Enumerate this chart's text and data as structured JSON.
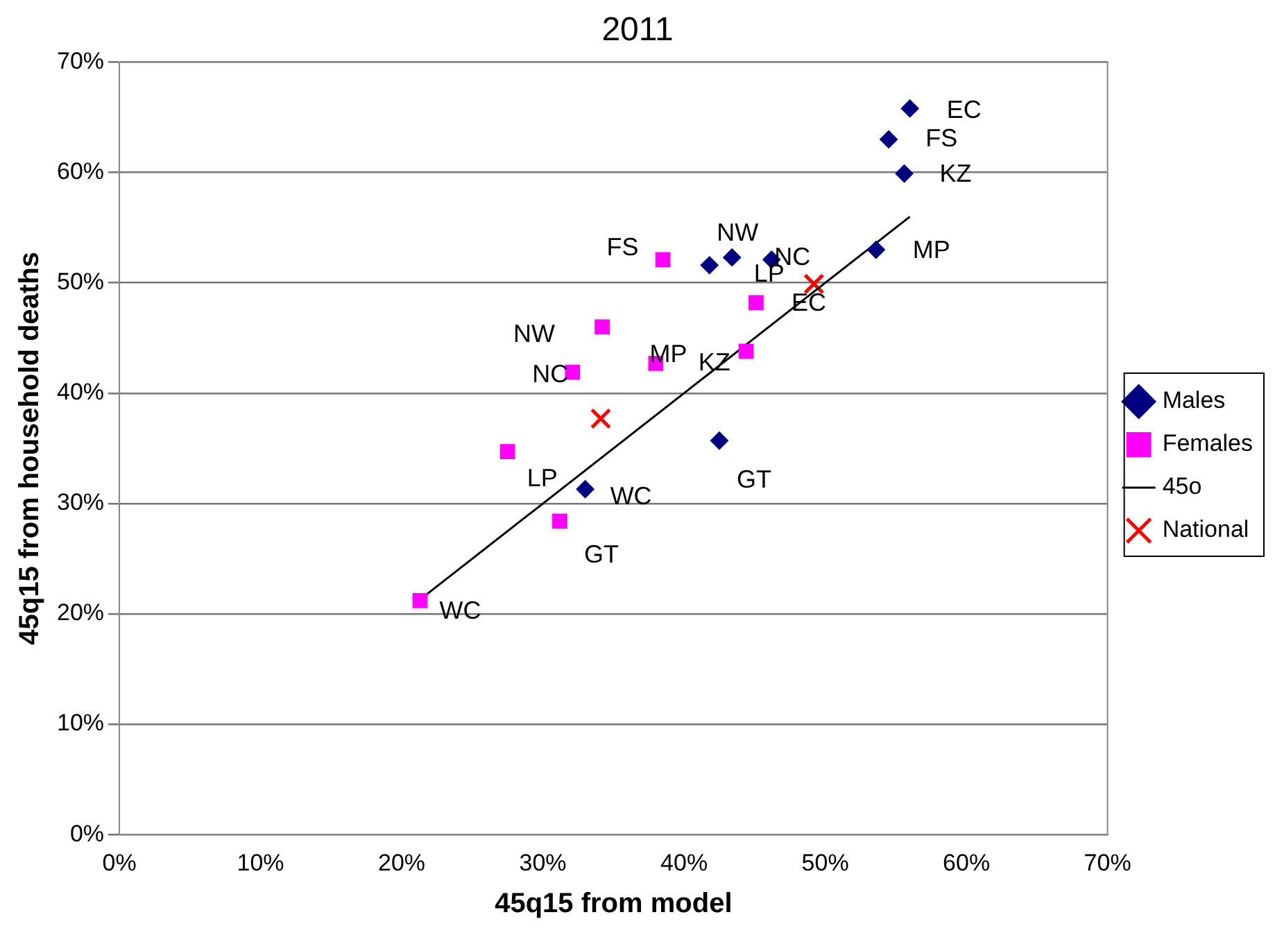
{
  "chart_data": {
    "type": "scatter",
    "title": "2011",
    "xlabel": "45q15 from model",
    "ylabel": "45q15 from household deaths",
    "xlim": [
      0,
      70
    ],
    "ylim": [
      0,
      70
    ],
    "xticks": [
      {
        "value": 0,
        "label": "0%"
      },
      {
        "value": 10,
        "label": "10%"
      },
      {
        "value": 20,
        "label": "20%"
      },
      {
        "value": 30,
        "label": "30%"
      },
      {
        "value": 40,
        "label": "40%"
      },
      {
        "value": 50,
        "label": "50%"
      },
      {
        "value": 60,
        "label": "60%"
      },
      {
        "value": 70,
        "label": "70%"
      }
    ],
    "yticks": [
      {
        "value": 0,
        "label": "0%"
      },
      {
        "value": 10,
        "label": "10%"
      },
      {
        "value": 20,
        "label": "20%"
      },
      {
        "value": 30,
        "label": "30%"
      },
      {
        "value": 40,
        "label": "40%"
      },
      {
        "value": 50,
        "label": "50%"
      },
      {
        "value": 60,
        "label": "60%"
      },
      {
        "value": 70,
        "label": "70%"
      }
    ],
    "grid": "y",
    "legend": "right",
    "series": [
      {
        "name": "Males",
        "type": "scatter",
        "marker": "diamond",
        "color": "#000080",
        "x": [
          56.0,
          54.5,
          55.6,
          53.6,
          41.8,
          43.4,
          46.2,
          42.5,
          33.0
        ],
        "values": [
          65.8,
          63.0,
          59.9,
          53.0,
          51.6,
          52.3,
          52.1,
          35.7,
          31.3
        ],
        "value_labels": [
          "EC",
          "FS",
          "KZ",
          "MP",
          "LP",
          "NW",
          "NC",
          "GT",
          "WC"
        ]
      },
      {
        "name": "Females",
        "type": "scatter",
        "marker": "square",
        "color": "#ff00ff",
        "x": [
          38.5,
          34.2,
          32.1,
          38.0,
          44.4,
          45.1,
          27.5,
          31.2,
          21.3
        ],
        "values": [
          52.1,
          46.0,
          41.9,
          42.7,
          43.8,
          48.2,
          34.7,
          28.4,
          21.2
        ],
        "value_labels": [
          "FS",
          "NW",
          "NC",
          "MP",
          "KZ",
          "EC",
          "LP",
          "GT",
          "WC"
        ]
      },
      {
        "name": "45o",
        "type": "line",
        "marker": "none",
        "line_style": "solid",
        "color": "#000000",
        "x": [
          21.3,
          56.0
        ],
        "values": [
          21.3,
          56.0
        ]
      },
      {
        "name": "National",
        "type": "scatter",
        "marker": "cross",
        "color": "#ff0000",
        "x": [
          34.1,
          49.2
        ],
        "values": [
          37.7,
          49.9
        ]
      }
    ]
  }
}
